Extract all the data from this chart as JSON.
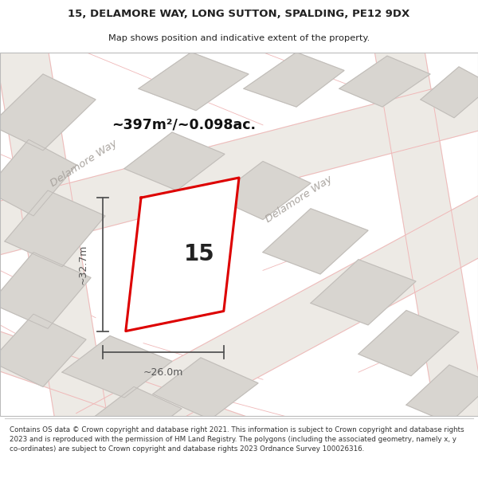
{
  "title_line1": "15, DELAMORE WAY, LONG SUTTON, SPALDING, PE12 9DX",
  "title_line2": "Map shows position and indicative extent of the property.",
  "area_text": "~397m²/~0.098ac.",
  "property_number": "15",
  "width_label": "~26.0m",
  "height_label": "~32.7m",
  "copyright_text": "Contains OS data © Crown copyright and database right 2021. This information is subject to Crown copyright and database rights 2023 and is reproduced with the permission of HM Land Registry. The polygons (including the associated geometry, namely x, y co-ordinates) are subject to Crown copyright and database rights 2023 Ordnance Survey 100026316.",
  "map_bg": "#f8f7f5",
  "road_fill_color": "#edeae5",
  "road_edge_color": "#f0b8b8",
  "plot_outline_color": "#dd0000",
  "building_fill": "#d8d5d0",
  "building_edge": "#c0bcb8",
  "dim_line_color": "#555555",
  "road_label_color": "#aaa5a0",
  "text_color": "#222222",
  "footer_color": "#333333",
  "area_text_color": "#111111"
}
